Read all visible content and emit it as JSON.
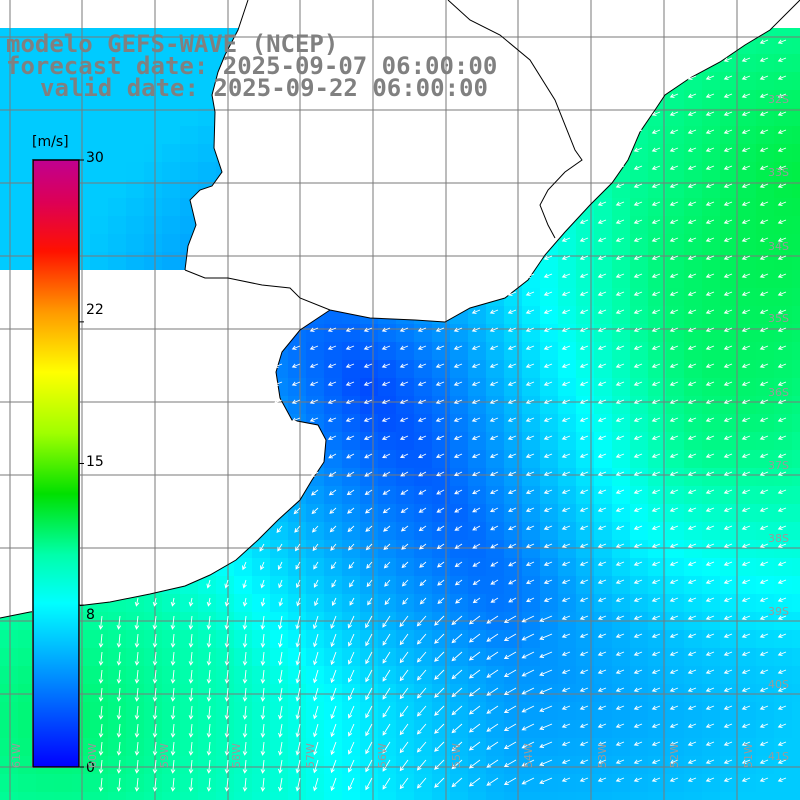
{
  "title": {
    "line1": "modelo GEFS-WAVE (NCEP)",
    "line2": "forecast date: 2025-09-07 06:00:00",
    "line3": "valid date: 2025-09-22 06:00:00"
  },
  "colorbar": {
    "unit": "[m/s]",
    "min": 0,
    "max": 30,
    "ticks": [
      {
        "value": 30,
        "label": "30"
      },
      {
        "value": 22,
        "label": "22"
      },
      {
        "value": 15,
        "label": "15"
      },
      {
        "value": 8,
        "label": "8"
      },
      {
        "value": 0,
        "label": "0"
      }
    ],
    "colors": [
      "#0000ff",
      "#00aaff",
      "#00ffff",
      "#00ff66",
      "#00ee00",
      "#88ff00",
      "#ffff00",
      "#ffaa00",
      "#ff5500",
      "#ff0000",
      "#dd0066",
      "#bb0088"
    ]
  },
  "lat_labels": [
    "32S",
    "33S",
    "34S",
    "35S",
    "36S",
    "37S",
    "38S",
    "39S",
    "40S",
    "41S"
  ],
  "lon_labels": [
    "61W",
    "60W",
    "59W",
    "58W",
    "57W",
    "56W",
    "55W",
    "54W",
    "53W",
    "52W",
    "51W"
  ],
  "chart_data": {
    "type": "heatmap",
    "title": "",
    "value_ranges": {
      "north_east_shelf": [
        10,
        13
      ],
      "rio_de_la_plata": [
        3,
        5
      ],
      "central_ocean": [
        5,
        7
      ],
      "south_west_shelf": [
        10,
        12
      ]
    },
    "wind_direction": "arrows point toward west-southwest in the north and toward south in the south-west",
    "colormap": "jet-like 0 to 30 m/s"
  }
}
